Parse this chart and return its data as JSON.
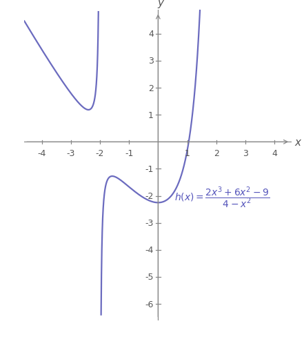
{
  "xlim": [
    -4.6,
    4.6
  ],
  "ylim": [
    -6.6,
    4.9
  ],
  "xticks": [
    -4,
    -3,
    -2,
    -1,
    1,
    2,
    3,
    4
  ],
  "yticks": [
    -6,
    -5,
    -4,
    -3,
    -2,
    -1,
    1,
    2,
    3,
    4
  ],
  "curve_color": "#6B6BBF",
  "label_color": "#5555bb",
  "background_color": "#ffffff",
  "figsize": [
    4.41,
    4.89
  ],
  "dpi": 100,
  "linewidth": 1.6,
  "axis_color": "#888888",
  "tick_label_color": "#555555",
  "tick_label_size": 9,
  "xlabel_offset": [
    0.13,
    0
  ],
  "ylabel_offset": [
    0.05,
    0.12
  ]
}
